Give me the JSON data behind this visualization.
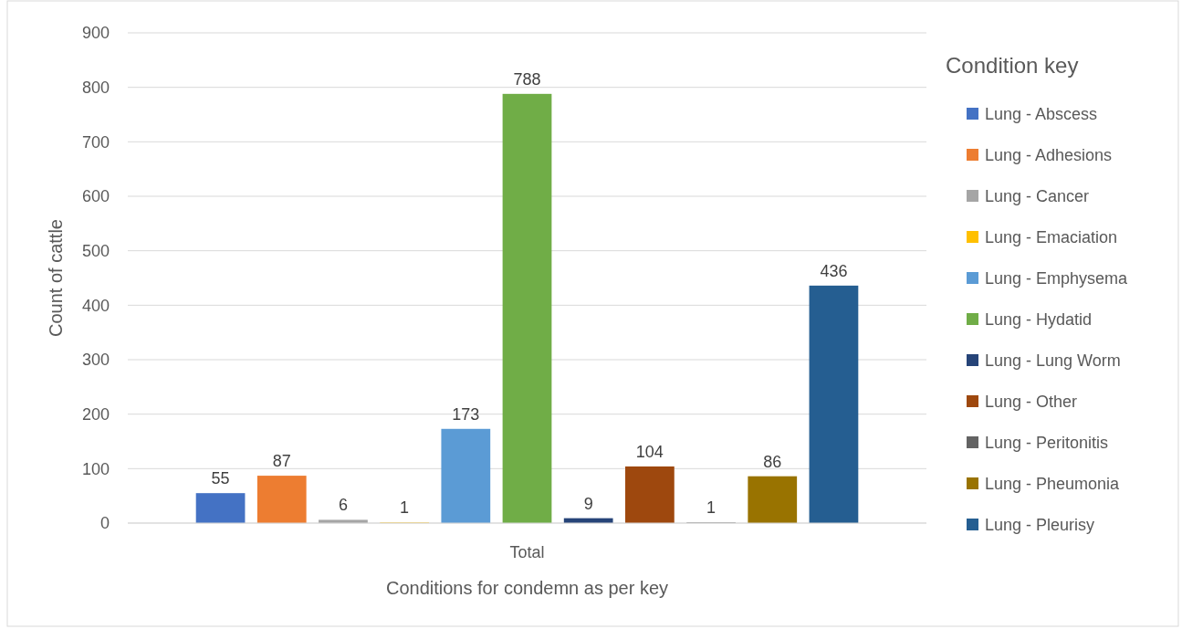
{
  "chart_data": {
    "type": "bar",
    "xlabel": "Conditions for condemn as per key",
    "ylabel": "Count of cattle",
    "legend_title": "Condition key",
    "categories": [
      "Total"
    ],
    "ylim": [
      0,
      900
    ],
    "yticks": [
      0,
      100,
      200,
      300,
      400,
      500,
      600,
      700,
      800,
      900
    ],
    "grid": "y",
    "legend": "right",
    "data_labels": true,
    "series": [
      {
        "name": "Lung - Abscess",
        "color": "#4472c4",
        "values": [
          55
        ]
      },
      {
        "name": "Lung - Adhesions",
        "color": "#ed7d31",
        "values": [
          87
        ]
      },
      {
        "name": "Lung - Cancer",
        "color": "#a5a5a5",
        "values": [
          6
        ]
      },
      {
        "name": "Lung - Emaciation",
        "color": "#ffc000",
        "values": [
          1
        ]
      },
      {
        "name": "Lung - Emphysema",
        "color": "#5b9bd5",
        "values": [
          173
        ]
      },
      {
        "name": "Lung - Hydatid",
        "color": "#70ad47",
        "values": [
          788
        ]
      },
      {
        "name": "Lung - Lung Worm",
        "color": "#264478",
        "values": [
          9
        ]
      },
      {
        "name": "Lung - Other",
        "color": "#9e480e",
        "values": [
          104
        ]
      },
      {
        "name": "Lung - Peritonitis",
        "color": "#636363",
        "values": [
          1
        ]
      },
      {
        "name": "Lung - Pheumonia",
        "color": "#997300",
        "values": [
          86
        ]
      },
      {
        "name": "Lung - Pleurisy",
        "color": "#255e91",
        "values": [
          436
        ]
      }
    ]
  }
}
